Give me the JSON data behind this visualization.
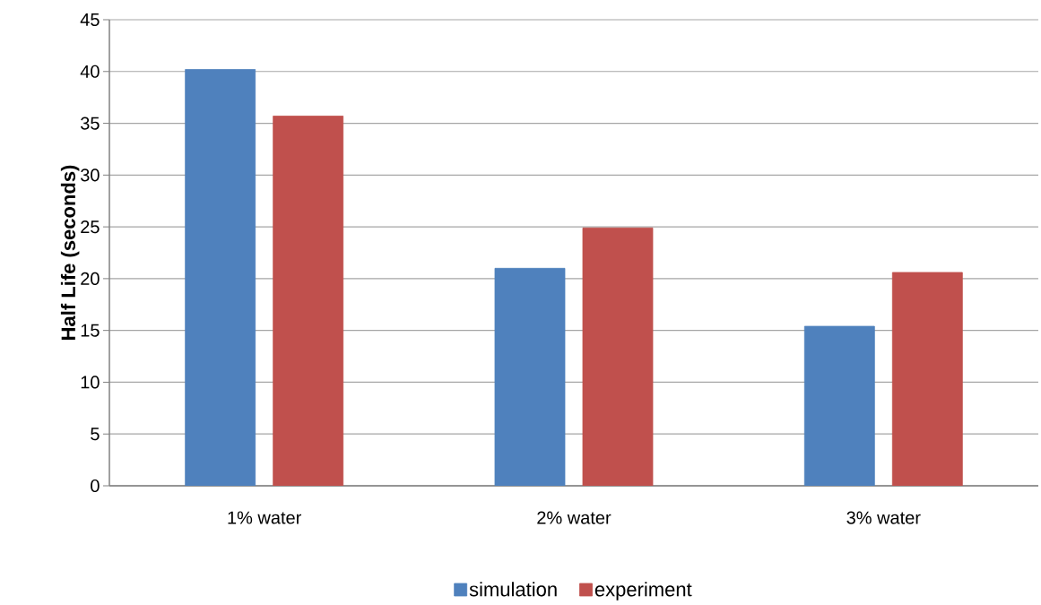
{
  "chart_data": {
    "type": "bar",
    "ylabel": "Half Life (seconds)",
    "categories": [
      "1% water",
      "2% water",
      "3% water"
    ],
    "series": [
      {
        "name": "simulation",
        "color": "#4f81bd",
        "values": [
          40.2,
          21.0,
          15.4
        ]
      },
      {
        "name": "experiment",
        "color": "#c0504d",
        "values": [
          35.7,
          24.9,
          20.6
        ]
      }
    ],
    "ylim": [
      0,
      45
    ],
    "yticks": [
      0,
      5,
      10,
      15,
      20,
      25,
      30,
      35,
      40,
      45
    ],
    "grid": "y",
    "legend": "bottom"
  }
}
